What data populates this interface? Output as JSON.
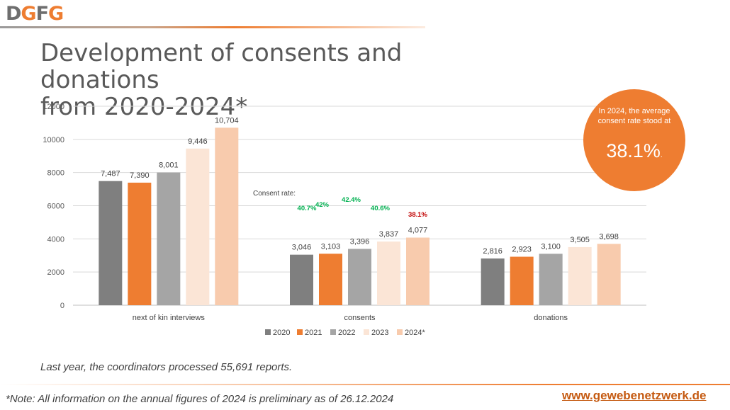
{
  "header": {
    "logo": {
      "d": "D",
      "g1": "G",
      "f": "F",
      "g2": "G"
    },
    "title_line1": "Development of consents and donations",
    "title_line2": "from 2020-2024*"
  },
  "badge": {
    "text": "In 2024, the average consent rate stood at",
    "value": "38.1%",
    "suffix": "."
  },
  "chart_data": {
    "type": "bar",
    "categories": [
      "next of kin interviews",
      "consents",
      "donations"
    ],
    "series": [
      {
        "name": "2020",
        "values": [
          7487,
          3046,
          2816
        ],
        "labels": [
          "7,487",
          "3,046",
          "2,816"
        ],
        "color": "#7f7f7f"
      },
      {
        "name": "2021",
        "values": [
          7390,
          3103,
          2923
        ],
        "labels": [
          "7,390",
          "3,103",
          "2,923"
        ],
        "color": "#ee7d31"
      },
      {
        "name": "2022",
        "values": [
          8001,
          3396,
          3100
        ],
        "labels": [
          "8,001",
          "3,396",
          "3,100"
        ],
        "color": "#a5a5a5"
      },
      {
        "name": "2023",
        "values": [
          9446,
          3837,
          3505
        ],
        "labels": [
          "9,446",
          "3,837",
          "3,505"
        ],
        "color": "#fbe5d6"
      },
      {
        "name": "2024*",
        "values": [
          10704,
          4077,
          3698
        ],
        "labels": [
          "10,704",
          "4,077",
          "3,698"
        ],
        "color": "#f8cbad"
      }
    ],
    "ylim": [
      0,
      12000
    ],
    "yticks": [
      "0",
      "2000",
      "4000",
      "6000",
      "8000",
      "10000",
      "12000"
    ],
    "grid": true,
    "legend": "bottom",
    "annotation_label": "Consent rate:",
    "consent_rates": [
      {
        "text": "40.7%",
        "color": "#00b050"
      },
      {
        "text": "42%",
        "color": "#00b050"
      },
      {
        "text": "42.4%",
        "color": "#00b050"
      },
      {
        "text": "40.6%",
        "color": "#00b050"
      },
      {
        "text": "38.1%",
        "color": "#c00000"
      }
    ]
  },
  "footer": {
    "note_reports": "Last year, the coordinators processed 55,691 reports.",
    "note_preliminary": "*Note: All information on the annual figures of 2024 is preliminary as of 26.12.2024",
    "url": "www.gewebenetzwerk.de"
  }
}
